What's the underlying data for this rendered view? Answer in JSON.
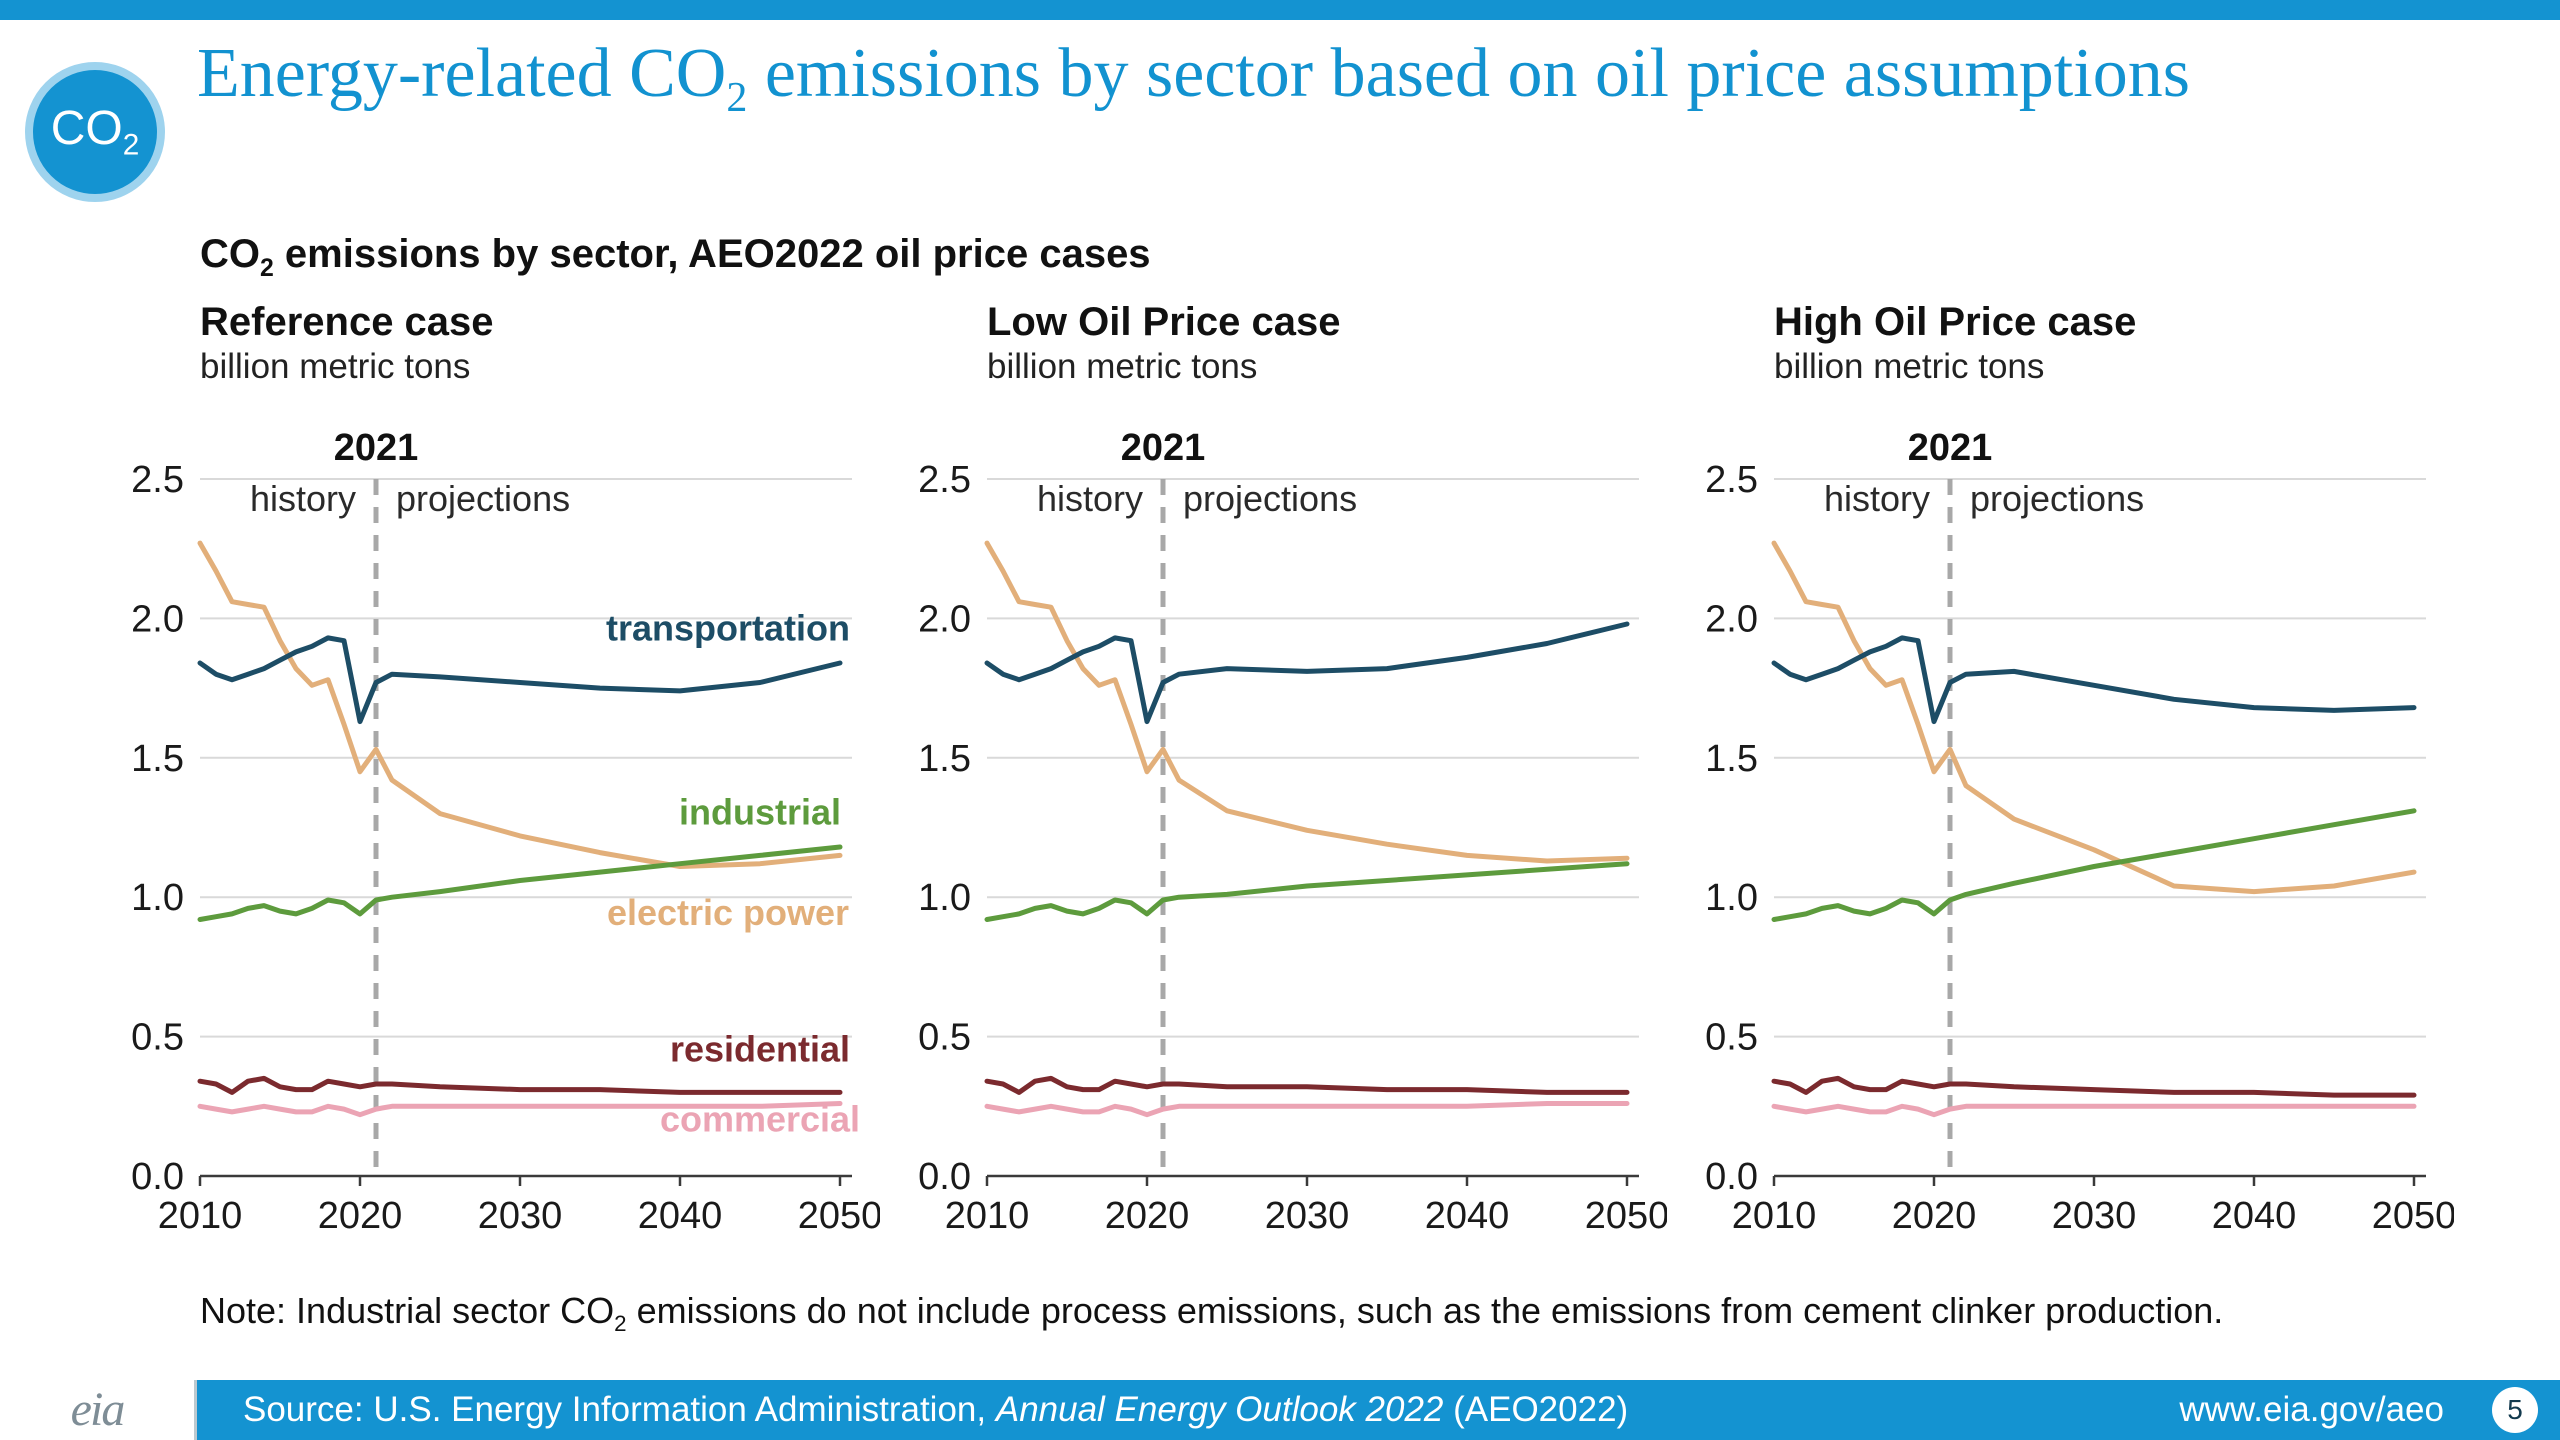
{
  "header": {
    "badge": {
      "pre": "CO",
      "sub": "2"
    },
    "title": {
      "pre": "Energy-related CO",
      "sub": "2",
      "post": " emissions by sector based on oil price assumptions"
    },
    "subtitle": {
      "pre": "CO",
      "sub": "2",
      "post": " emissions by sector, AEO2022 oil price cases"
    }
  },
  "note": {
    "pre": "Note: Industrial sector CO",
    "sub": "2",
    "post": " emissions do not include process emissions, such as the emissions from cement clinker production."
  },
  "footer": {
    "logo_text": "eia",
    "source_pre": "Source: U.S. Energy Information Administration, ",
    "source_italic": "Annual Energy Outlook 2022",
    "source_post": " (AEO2022)",
    "url": "www.eia.gov/aeo",
    "page_number": "5"
  },
  "colors": {
    "accent_blue": "#1493d1",
    "transportation": "#1d4d66",
    "industrial": "#5d9b3d",
    "electric_power": "#e2af7a",
    "residential": "#7b2a2e",
    "commercial": "#eba4b4",
    "divider": "#a8a8a8",
    "gridline": "#d9d9d9",
    "axis": "#3a3a3a"
  },
  "chart_data": [
    {
      "type": "line",
      "title": "Reference case",
      "units_label": "billion metric tons",
      "xlim": [
        2010,
        2050
      ],
      "ylim": [
        0,
        2.5
      ],
      "x_ticks": [
        2010,
        2020,
        2030,
        2040,
        2050
      ],
      "y_ticks": [
        0,
        0.5,
        1,
        1.5,
        2,
        2.5
      ],
      "divider": {
        "year": 2021,
        "label": "2021",
        "left_label": "history",
        "right_label": "projections"
      },
      "show_series_labels": true,
      "x": [
        2010,
        2011,
        2012,
        2013,
        2014,
        2015,
        2016,
        2017,
        2018,
        2019,
        2020,
        2021,
        2022,
        2025,
        2030,
        2035,
        2040,
        2045,
        2050
      ],
      "series": [
        {
          "name": "electric power",
          "color": "#e2af7a",
          "label_pos": [
            2043,
            0.9
          ],
          "values": [
            2.27,
            2.17,
            2.06,
            2.05,
            2.04,
            1.92,
            1.82,
            1.76,
            1.78,
            1.62,
            1.45,
            1.53,
            1.42,
            1.3,
            1.22,
            1.16,
            1.11,
            1.12,
            1.15
          ]
        },
        {
          "name": "transportation",
          "color": "#1d4d66",
          "label_pos": [
            2043,
            1.92
          ],
          "values": [
            1.84,
            1.8,
            1.78,
            1.8,
            1.82,
            1.85,
            1.88,
            1.9,
            1.93,
            1.92,
            1.63,
            1.77,
            1.8,
            1.79,
            1.77,
            1.75,
            1.74,
            1.77,
            1.84
          ]
        },
        {
          "name": "industrial",
          "color": "#5d9b3d",
          "label_pos": [
            2045,
            1.26
          ],
          "values": [
            0.92,
            0.93,
            0.94,
            0.96,
            0.97,
            0.95,
            0.94,
            0.96,
            0.99,
            0.98,
            0.94,
            0.99,
            1.0,
            1.02,
            1.06,
            1.09,
            1.12,
            1.15,
            1.18
          ]
        },
        {
          "name": "residential",
          "color": "#7b2a2e",
          "label_pos": [
            2045,
            0.41
          ],
          "values": [
            0.34,
            0.33,
            0.3,
            0.34,
            0.35,
            0.32,
            0.31,
            0.31,
            0.34,
            0.33,
            0.32,
            0.33,
            0.33,
            0.32,
            0.31,
            0.31,
            0.3,
            0.3,
            0.3
          ]
        },
        {
          "name": "commercial",
          "color": "#eba4b4",
          "label_pos": [
            2045,
            0.16
          ],
          "values": [
            0.25,
            0.24,
            0.23,
            0.24,
            0.25,
            0.24,
            0.23,
            0.23,
            0.25,
            0.24,
            0.22,
            0.24,
            0.25,
            0.25,
            0.25,
            0.25,
            0.25,
            0.25,
            0.26
          ]
        }
      ]
    },
    {
      "type": "line",
      "title": "Low Oil Price case",
      "units_label": "billion metric tons",
      "xlim": [
        2010,
        2050
      ],
      "ylim": [
        0,
        2.5
      ],
      "x_ticks": [
        2010,
        2020,
        2030,
        2040,
        2050
      ],
      "y_ticks": [
        0,
        0.5,
        1,
        1.5,
        2,
        2.5
      ],
      "divider": {
        "year": 2021,
        "label": "2021",
        "left_label": "history",
        "right_label": "projections"
      },
      "show_series_labels": false,
      "x": [
        2010,
        2011,
        2012,
        2013,
        2014,
        2015,
        2016,
        2017,
        2018,
        2019,
        2020,
        2021,
        2022,
        2025,
        2030,
        2035,
        2040,
        2045,
        2050
      ],
      "series": [
        {
          "name": "electric power",
          "color": "#e2af7a",
          "values": [
            2.27,
            2.17,
            2.06,
            2.05,
            2.04,
            1.92,
            1.82,
            1.76,
            1.78,
            1.62,
            1.45,
            1.53,
            1.42,
            1.31,
            1.24,
            1.19,
            1.15,
            1.13,
            1.14
          ]
        },
        {
          "name": "transportation",
          "color": "#1d4d66",
          "values": [
            1.84,
            1.8,
            1.78,
            1.8,
            1.82,
            1.85,
            1.88,
            1.9,
            1.93,
            1.92,
            1.63,
            1.77,
            1.8,
            1.82,
            1.81,
            1.82,
            1.86,
            1.91,
            1.98
          ]
        },
        {
          "name": "industrial",
          "color": "#5d9b3d",
          "values": [
            0.92,
            0.93,
            0.94,
            0.96,
            0.97,
            0.95,
            0.94,
            0.96,
            0.99,
            0.98,
            0.94,
            0.99,
            1.0,
            1.01,
            1.04,
            1.06,
            1.08,
            1.1,
            1.12
          ]
        },
        {
          "name": "residential",
          "color": "#7b2a2e",
          "values": [
            0.34,
            0.33,
            0.3,
            0.34,
            0.35,
            0.32,
            0.31,
            0.31,
            0.34,
            0.33,
            0.32,
            0.33,
            0.33,
            0.32,
            0.32,
            0.31,
            0.31,
            0.3,
            0.3
          ]
        },
        {
          "name": "commercial",
          "color": "#eba4b4",
          "values": [
            0.25,
            0.24,
            0.23,
            0.24,
            0.25,
            0.24,
            0.23,
            0.23,
            0.25,
            0.24,
            0.22,
            0.24,
            0.25,
            0.25,
            0.25,
            0.25,
            0.25,
            0.26,
            0.26
          ]
        }
      ]
    },
    {
      "type": "line",
      "title": "High Oil Price case",
      "units_label": "billion metric tons",
      "xlim": [
        2010,
        2050
      ],
      "ylim": [
        0,
        2.5
      ],
      "x_ticks": [
        2010,
        2020,
        2030,
        2040,
        2050
      ],
      "y_ticks": [
        0,
        0.5,
        1,
        1.5,
        2,
        2.5
      ],
      "divider": {
        "year": 2021,
        "label": "2021",
        "left_label": "history",
        "right_label": "projections"
      },
      "show_series_labels": false,
      "x": [
        2010,
        2011,
        2012,
        2013,
        2014,
        2015,
        2016,
        2017,
        2018,
        2019,
        2020,
        2021,
        2022,
        2025,
        2030,
        2035,
        2040,
        2045,
        2050
      ],
      "series": [
        {
          "name": "electric power",
          "color": "#e2af7a",
          "values": [
            2.27,
            2.17,
            2.06,
            2.05,
            2.04,
            1.92,
            1.82,
            1.76,
            1.78,
            1.62,
            1.45,
            1.53,
            1.4,
            1.28,
            1.17,
            1.04,
            1.02,
            1.04,
            1.09
          ]
        },
        {
          "name": "transportation",
          "color": "#1d4d66",
          "values": [
            1.84,
            1.8,
            1.78,
            1.8,
            1.82,
            1.85,
            1.88,
            1.9,
            1.93,
            1.92,
            1.63,
            1.77,
            1.8,
            1.81,
            1.76,
            1.71,
            1.68,
            1.67,
            1.68
          ]
        },
        {
          "name": "industrial",
          "color": "#5d9b3d",
          "values": [
            0.92,
            0.93,
            0.94,
            0.96,
            0.97,
            0.95,
            0.94,
            0.96,
            0.99,
            0.98,
            0.94,
            0.99,
            1.01,
            1.05,
            1.11,
            1.16,
            1.21,
            1.26,
            1.31
          ]
        },
        {
          "name": "residential",
          "color": "#7b2a2e",
          "values": [
            0.34,
            0.33,
            0.3,
            0.34,
            0.35,
            0.32,
            0.31,
            0.31,
            0.34,
            0.33,
            0.32,
            0.33,
            0.33,
            0.32,
            0.31,
            0.3,
            0.3,
            0.29,
            0.29
          ]
        },
        {
          "name": "commercial",
          "color": "#eba4b4",
          "values": [
            0.25,
            0.24,
            0.23,
            0.24,
            0.25,
            0.24,
            0.23,
            0.23,
            0.25,
            0.24,
            0.22,
            0.24,
            0.25,
            0.25,
            0.25,
            0.25,
            0.25,
            0.25,
            0.25
          ]
        }
      ]
    }
  ]
}
